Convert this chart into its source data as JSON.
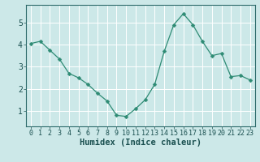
{
  "x": [
    0,
    1,
    2,
    3,
    4,
    5,
    6,
    7,
    8,
    9,
    10,
    11,
    12,
    13,
    14,
    15,
    16,
    17,
    18,
    19,
    20,
    21,
    22,
    23
  ],
  "y": [
    4.05,
    4.15,
    3.75,
    3.35,
    2.7,
    2.5,
    2.2,
    1.8,
    1.45,
    0.8,
    0.75,
    1.1,
    1.5,
    2.2,
    3.7,
    4.9,
    5.4,
    4.9,
    4.15,
    3.5,
    3.6,
    2.55,
    2.6,
    2.4
  ],
  "line_color": "#2e8b74",
  "marker": "D",
  "marker_size": 2.5,
  "bg_color": "#cce8e8",
  "grid_color": "#ffffff",
  "axis_color": "#2e6b6b",
  "text_color": "#1a5050",
  "xlabel": "Humidex (Indice chaleur)",
  "xlim": [
    -0.5,
    23.5
  ],
  "ylim": [
    0.3,
    5.8
  ],
  "yticks": [
    1,
    2,
    3,
    4,
    5
  ],
  "xticks": [
    0,
    1,
    2,
    3,
    4,
    5,
    6,
    7,
    8,
    9,
    10,
    11,
    12,
    13,
    14,
    15,
    16,
    17,
    18,
    19,
    20,
    21,
    22,
    23
  ],
  "tick_fontsize": 6,
  "label_fontsize": 7.5
}
